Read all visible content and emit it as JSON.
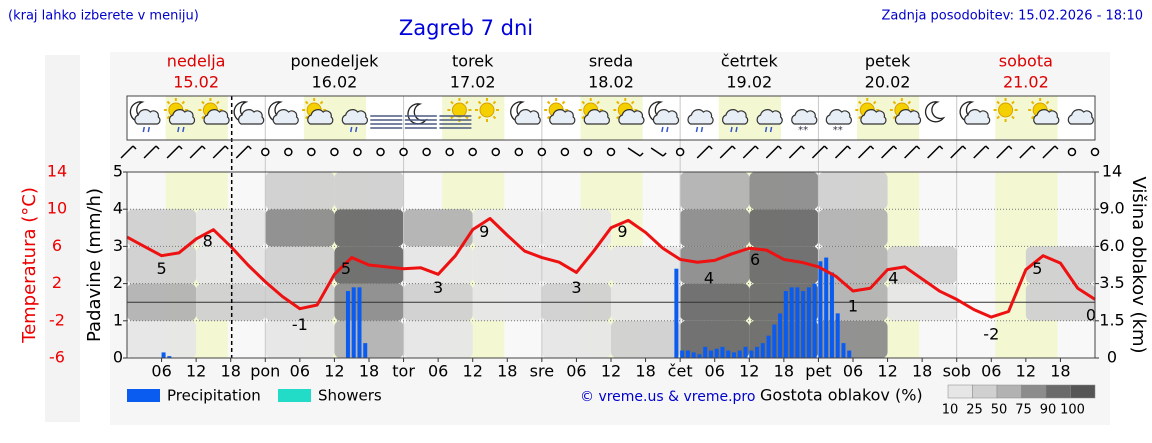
{
  "chart_data": {
    "type": "meteogram",
    "note": "(kraj lahko izberete v meniju)",
    "title": "Zagreb 7 dni",
    "updated": "Zadnja posodobitev: 15.02.2026 - 18:10",
    "days": [
      {
        "name": "nedelja",
        "date": "15.02",
        "color": "#dd0000"
      },
      {
        "name": "ponedeljek",
        "date": "16.02",
        "color": "#000000"
      },
      {
        "name": "torek",
        "date": "17.02",
        "color": "#000000"
      },
      {
        "name": "sreda",
        "date": "18.02",
        "color": "#000000"
      },
      {
        "name": "četrtek",
        "date": "19.02",
        "color": "#000000"
      },
      {
        "name": "petek",
        "date": "20.02",
        "color": "#000000"
      },
      {
        "name": "sobota",
        "date": "21.02",
        "color": "#dd0000"
      }
    ],
    "xlim": [
      0,
      168
    ],
    "xticks": [
      {
        "value": 6,
        "label": "06"
      },
      {
        "value": 12,
        "label": "12"
      },
      {
        "value": 18,
        "label": "18"
      },
      {
        "value": 24,
        "label": "pon"
      },
      {
        "value": 30,
        "label": "06"
      },
      {
        "value": 36,
        "label": "12"
      },
      {
        "value": 42,
        "label": "18"
      },
      {
        "value": 48,
        "label": "tor"
      },
      {
        "value": 54,
        "label": "06"
      },
      {
        "value": 60,
        "label": "12"
      },
      {
        "value": 66,
        "label": "18"
      },
      {
        "value": 72,
        "label": "sre"
      },
      {
        "value": 78,
        "label": "06"
      },
      {
        "value": 84,
        "label": "12"
      },
      {
        "value": 90,
        "label": "18"
      },
      {
        "value": 96,
        "label": "čet"
      },
      {
        "value": 102,
        "label": "06"
      },
      {
        "value": 108,
        "label": "12"
      },
      {
        "value": 114,
        "label": "18"
      },
      {
        "value": 120,
        "label": "pet"
      },
      {
        "value": 126,
        "label": "06"
      },
      {
        "value": 132,
        "label": "12"
      },
      {
        "value": 138,
        "label": "18"
      },
      {
        "value": 144,
        "label": "sob"
      },
      {
        "value": 150,
        "label": "06"
      },
      {
        "value": 156,
        "label": "12"
      },
      {
        "value": 162,
        "label": "18"
      }
    ],
    "now_marker": 18.17,
    "y_label": "Temperatura (°C)",
    "ylim": [
      -6,
      14
    ],
    "yticks": [
      14,
      10,
      6,
      2,
      -2,
      -6
    ],
    "y2_label": "Padavine (mm/h)",
    "y2lim": [
      0,
      5
    ],
    "y2ticks": [
      0,
      1,
      2,
      3,
      4,
      5
    ],
    "y3_label": "Višina oblakov (km)",
    "y3ticks": [
      0,
      1.5,
      3.5,
      {
        "value": 6,
        "label": "6.0"
      },
      {
        "value": 9,
        "label": "9.0"
      },
      14
    ],
    "grid": true,
    "temperature": {
      "color": "#ee1111",
      "x": [
        0,
        3,
        6,
        9,
        12,
        15,
        18,
        21,
        24,
        27,
        30,
        33,
        36,
        39,
        42,
        45,
        48,
        51,
        54,
        57,
        60,
        63,
        66,
        69,
        72,
        75,
        78,
        81,
        84,
        87,
        90,
        93,
        96,
        99,
        102,
        105,
        108,
        111,
        114,
        117,
        120,
        123,
        126,
        129,
        132,
        135,
        138,
        141,
        144,
        147,
        150,
        153,
        156,
        159,
        162,
        165,
        168
      ],
      "values": [
        7.0,
        6.0,
        5.0,
        5.3,
        6.8,
        7.8,
        6.0,
        4.0,
        2.2,
        0.6,
        -0.7,
        -0.3,
        3.0,
        4.8,
        4.0,
        3.8,
        3.6,
        3.7,
        3.0,
        5.0,
        7.8,
        9.0,
        7.2,
        5.5,
        4.8,
        4.3,
        3.2,
        5.5,
        8.0,
        8.8,
        7.5,
        5.8,
        4.6,
        4.3,
        4.5,
        5.2,
        5.8,
        5.6,
        4.6,
        4.3,
        3.8,
        2.8,
        1.2,
        1.5,
        3.5,
        3.8,
        2.5,
        1.2,
        0.3,
        -0.8,
        -1.6,
        -1.0,
        3.5,
        5.0,
        4.2,
        1.5,
        0.3
      ]
    },
    "extremes": {
      "x": [
        6,
        14,
        30,
        38,
        54,
        62,
        78,
        86,
        101,
        109,
        126,
        133,
        150,
        158,
        168
      ],
      "values": [
        5,
        8,
        -1,
        5,
        3,
        9,
        3,
        9,
        4,
        6,
        1,
        4,
        -2,
        5,
        0
      ]
    },
    "series": [
      {
        "name": "Precipitation",
        "color": "#0a5cf0",
        "x": [
          6,
          7,
          38,
          39,
          40,
          41,
          95,
          96,
          97,
          98,
          99,
          100,
          101,
          102,
          103,
          104,
          105,
          106,
          107,
          108,
          109,
          110,
          111,
          112,
          113,
          114,
          115,
          116,
          117,
          118,
          119,
          120,
          121,
          122,
          123,
          124,
          125
        ],
        "values": [
          0.15,
          0.05,
          1.8,
          1.9,
          1.9,
          0.4,
          2.4,
          0.2,
          0.2,
          0.15,
          0.1,
          0.3,
          0.2,
          0.25,
          0.3,
          0.2,
          0.15,
          0.2,
          0.3,
          0.2,
          0.3,
          0.4,
          0.6,
          0.9,
          1.2,
          1.8,
          1.9,
          1.9,
          1.8,
          1.9,
          2.0,
          2.6,
          2.7,
          2.3,
          1.2,
          0.4,
          0.2
        ]
      },
      {
        "name": "Showers",
        "color": "#22dcc8",
        "x": [],
        "values": []
      }
    ],
    "credit": "© vreme.us & vreme.pro",
    "clouds": {
      "title": "Gostota oblakov (%)",
      "bins": [
        0,
        12,
        24,
        36,
        48,
        60,
        72,
        84,
        96,
        108,
        120,
        132,
        144,
        156,
        168
      ],
      "values": [
        [
          10,
          50,
          25,
          25,
          0
        ],
        [
          0,
          25,
          10,
          10,
          0
        ],
        [
          10,
          25,
          25,
          75,
          25
        ],
        [
          50,
          75,
          90,
          90,
          25
        ],
        [
          10,
          25,
          10,
          50,
          0
        ],
        [
          0,
          10,
          10,
          10,
          0
        ],
        [
          10,
          25,
          10,
          10,
          0
        ],
        [
          25,
          10,
          10,
          0,
          0
        ],
        [
          90,
          90,
          75,
          75,
          50
        ],
        [
          90,
          90,
          90,
          90,
          75
        ],
        [
          75,
          50,
          50,
          50,
          25
        ],
        [
          0,
          10,
          25,
          0,
          0
        ],
        [
          0,
          0,
          0,
          0,
          0
        ],
        [
          0,
          25,
          25,
          0,
          0
        ]
      ],
      "scale": [
        10,
        25,
        50,
        75,
        90,
        100
      ],
      "colors": [
        "#e6e6e6",
        "#d0d0d0",
        "#b2b2b2",
        "#8c8c8c",
        "#6a6a6a",
        "#555555"
      ]
    }
  }
}
